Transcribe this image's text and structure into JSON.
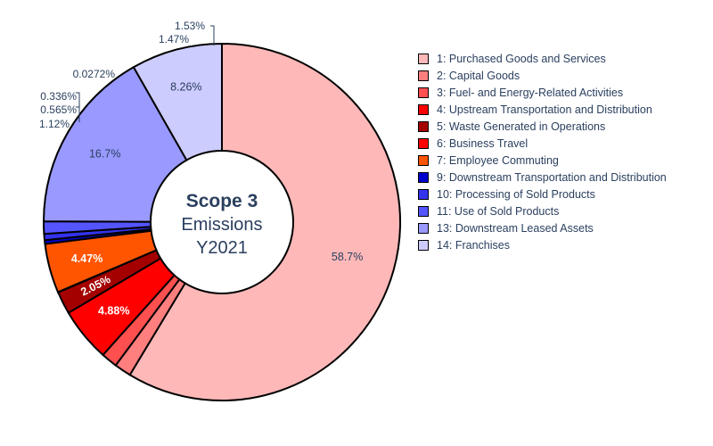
{
  "chart_data": {
    "type": "pie",
    "hole": true,
    "center_title": {
      "bold": "Scope 3",
      "line2": "Emissions",
      "line3": "Y2021"
    },
    "legend_position": "right",
    "slices": [
      {
        "label": "1: Purchased Goods and Services",
        "value": 58.7,
        "text": "58.7%",
        "color": "#ffb8b8",
        "text_pos": "inside",
        "text_color": "#2a3f5f"
      },
      {
        "label": "2: Capital Goods",
        "value": 1.53,
        "text": "1.53%",
        "color": "#ff7e7e",
        "text_pos": "outside",
        "text_color": "#2a3f5f"
      },
      {
        "label": "3: Fuel- and Energy-Related Activities",
        "value": 1.47,
        "text": "1.47%",
        "color": "#ff4f4f",
        "text_pos": "outside",
        "text_color": "#2a3f5f"
      },
      {
        "label": "4: Upstream Transportation and Distribution",
        "value": 4.88,
        "text": "4.88%",
        "color": "#ff0000",
        "text_pos": "inside",
        "text_color": "#ffffff"
      },
      {
        "label": "5: Waste Generated in Operations",
        "value": 2.05,
        "text": "2.05%",
        "color": "#a50000",
        "text_pos": "inside",
        "text_color": "#ffffff"
      },
      {
        "label": "6: Business Travel",
        "value": 0.0272,
        "text": "0.0272%",
        "color": "#ff0000",
        "text_pos": "outside",
        "text_color": "#2a3f5f"
      },
      {
        "label": "7: Employee Commuting",
        "value": 4.47,
        "text": "4.47%",
        "color": "#ff5500",
        "text_pos": "inside",
        "text_color": "#ffffff"
      },
      {
        "label": "9: Downstream Transportation and Distribution",
        "value": 0.336,
        "text": "0.336%",
        "color": "#0000cc",
        "text_pos": "outside",
        "text_color": "#2a3f5f"
      },
      {
        "label": "10: Processing of Sold Products",
        "value": 0.565,
        "text": "0.565%",
        "color": "#3333ee",
        "text_pos": "outside",
        "text_color": "#2a3f5f"
      },
      {
        "label": "11: Use of Sold Products",
        "value": 1.12,
        "text": "1.12%",
        "color": "#5555ff",
        "text_pos": "outside",
        "text_color": "#2a3f5f"
      },
      {
        "label": "13: Downstream Leased Assets",
        "value": 16.7,
        "text": "16.7%",
        "color": "#9999ff",
        "text_pos": "inside",
        "text_color": "#2a3f5f"
      },
      {
        "label": "14: Franchises",
        "value": 8.26,
        "text": "8.26%",
        "color": "#ccccff",
        "text_pos": "inside",
        "text_color": "#2a3f5f"
      }
    ]
  }
}
